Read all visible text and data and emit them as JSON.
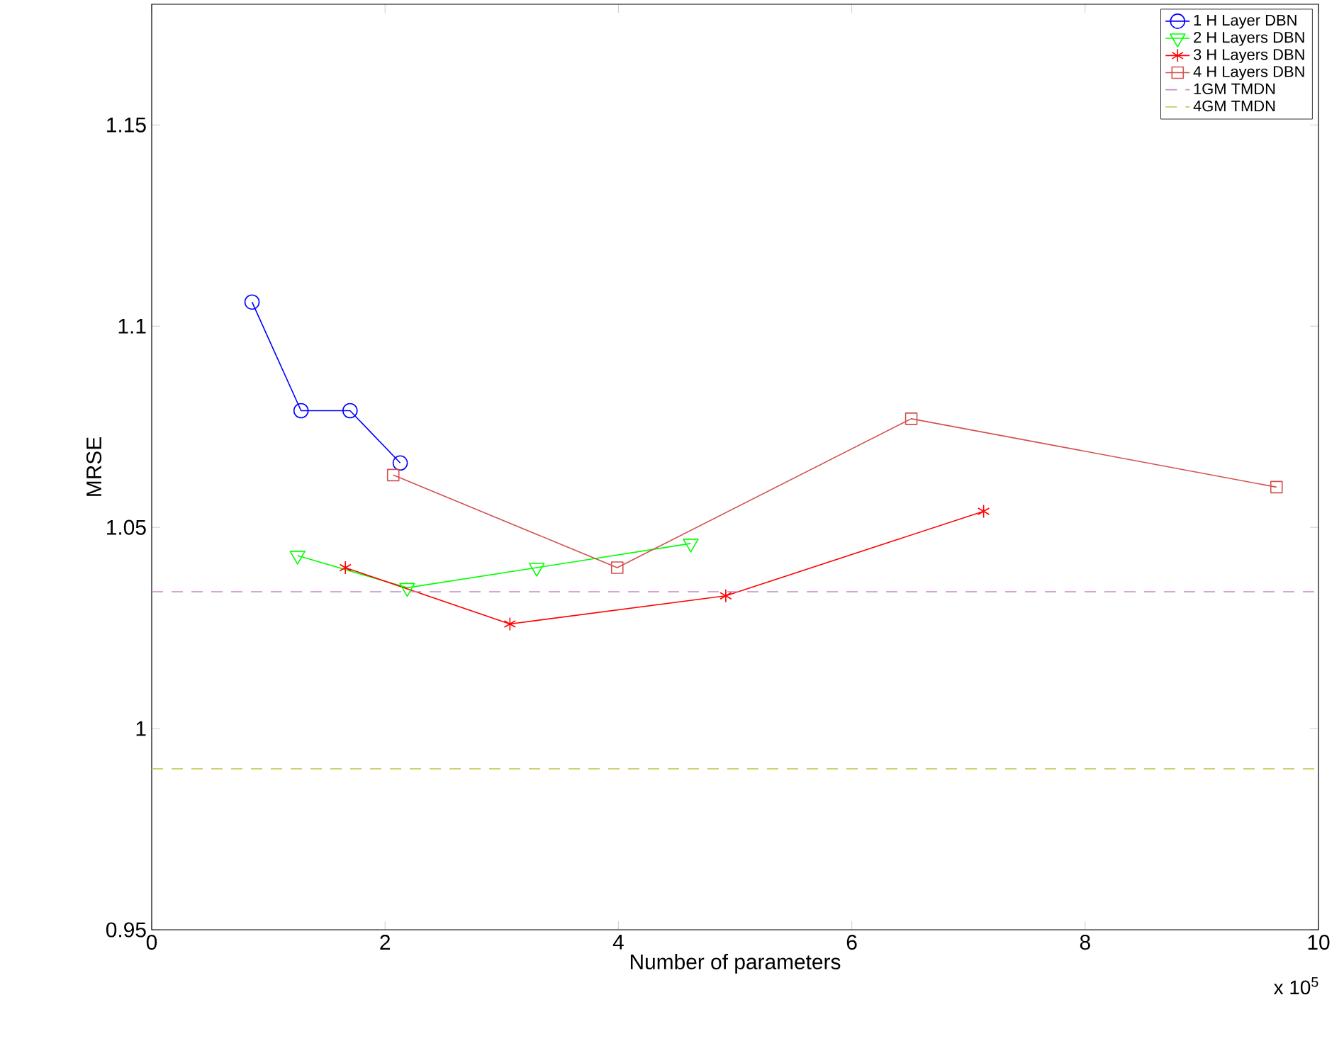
{
  "chart_data": {
    "type": "line",
    "xlabel": "Number of parameters",
    "ylabel": "MRSE",
    "xlim": [
      0,
      10
    ],
    "ylim": [
      0.95,
      1.18
    ],
    "xticks": [
      0,
      2,
      4,
      6,
      8,
      10
    ],
    "yticks": [
      0.95,
      1,
      1.05,
      1.1,
      1.15
    ],
    "legend": "top right",
    "grid": false,
    "line_style": "solid",
    "series": [
      {
        "name": "1 H Layer DBN",
        "color": "#0000ff",
        "marker": "circle",
        "x": [
          0.86,
          1.28,
          1.7,
          2.13
        ],
        "values": [
          1.106,
          1.079,
          1.079,
          1.066
        ]
      },
      {
        "name": "2 H Layers DBN",
        "color": "#00ff00",
        "marker": "triangle",
        "x": [
          1.25,
          2.19,
          3.3,
          4.62
        ],
        "values": [
          1.043,
          1.035,
          1.04,
          1.046
        ]
      },
      {
        "name": "3 H Layers DBN",
        "color": "#ff0000",
        "marker": "cross",
        "x": [
          1.66,
          3.07,
          4.92,
          7.13
        ],
        "values": [
          1.04,
          1.026,
          1.033,
          1.054
        ]
      },
      {
        "name": "4 H Layers DBN",
        "color": "#d45050",
        "marker": "square",
        "x": [
          2.07,
          3.99,
          6.51,
          9.64
        ],
        "values": [
          1.063,
          1.04,
          1.077,
          1.06
        ]
      }
    ],
    "ref_lines": [
      {
        "axis": "y",
        "value": 1.034,
        "label": "1GM TMDN",
        "color": "#cc88cc",
        "line_style": "dashed"
      },
      {
        "axis": "y",
        "value": 0.99,
        "label": "4GM TMDN",
        "color": "#cccc66",
        "line_style": "dashed"
      }
    ],
    "annotations": [
      "x 10$^{5}$"
    ]
  }
}
